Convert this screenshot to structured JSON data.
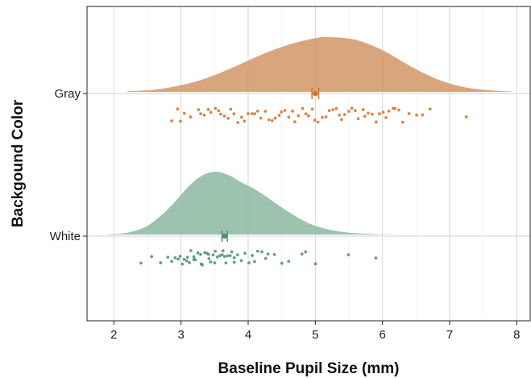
{
  "chart_data": {
    "type": "raincloud",
    "xlabel": "Baseline Pupil Size (mm)",
    "ylabel": "Backgound Color",
    "xlim": [
      1.6,
      8.2
    ],
    "x_ticks": [
      2,
      3,
      4,
      5,
      6,
      7,
      8
    ],
    "x_tick_labels": [
      "2",
      "3",
      "4",
      "5",
      "6",
      "7",
      "8"
    ],
    "grid": true,
    "legend": "none",
    "series": [
      {
        "name": "Gray",
        "color": "#d4996b",
        "point_color": "#c8753a",
        "mean": 5.0,
        "ci": [
          4.95,
          5.05
        ],
        "density": {
          "x": [
            2.2,
            2.6,
            3.0,
            3.4,
            3.8,
            4.2,
            4.6,
            5.0,
            5.2,
            5.6,
            6.0,
            6.4,
            6.8,
            7.2,
            7.6,
            7.95
          ],
          "y": [
            0.01,
            0.04,
            0.12,
            0.26,
            0.46,
            0.68,
            0.86,
            0.98,
            1.0,
            0.95,
            0.76,
            0.48,
            0.24,
            0.09,
            0.03,
            0.005
          ]
        },
        "points_x": [
          2.85,
          2.95,
          3.0,
          3.05,
          3.15,
          3.25,
          3.3,
          3.35,
          3.4,
          3.45,
          3.5,
          3.55,
          3.6,
          3.65,
          3.7,
          3.75,
          3.8,
          3.85,
          3.9,
          3.95,
          4.0,
          4.05,
          4.1,
          4.15,
          4.2,
          4.25,
          4.3,
          4.35,
          4.4,
          4.45,
          4.5,
          4.55,
          4.6,
          4.65,
          4.7,
          4.75,
          4.8,
          4.85,
          4.9,
          4.95,
          5.0,
          5.05,
          5.1,
          5.15,
          5.2,
          5.25,
          5.3,
          5.35,
          5.4,
          5.45,
          5.5,
          5.55,
          5.6,
          5.65,
          5.7,
          5.75,
          5.8,
          5.85,
          5.9,
          5.95,
          6.0,
          6.05,
          6.1,
          6.15,
          6.2,
          6.25,
          6.3,
          6.4,
          6.5,
          6.6,
          6.7,
          7.25
        ]
      },
      {
        "name": "White",
        "color": "#8fbba4",
        "point_color": "#4f8f6e",
        "mean": 3.65,
        "ci": [
          3.61,
          3.69
        ],
        "density": {
          "x": [
            1.9,
            2.2,
            2.5,
            2.8,
            3.1,
            3.3,
            3.5,
            3.7,
            3.9,
            4.1,
            4.3,
            4.6,
            4.9,
            5.2,
            5.5,
            5.8,
            6.1,
            6.35
          ],
          "y": [
            0.005,
            0.03,
            0.14,
            0.4,
            0.75,
            0.93,
            1.0,
            0.95,
            0.83,
            0.72,
            0.58,
            0.36,
            0.18,
            0.08,
            0.03,
            0.012,
            0.004,
            0.0
          ]
        },
        "points_x": [
          2.4,
          2.55,
          2.7,
          2.8,
          2.85,
          2.9,
          2.95,
          3.0,
          3.02,
          3.05,
          3.08,
          3.1,
          3.12,
          3.15,
          3.18,
          3.2,
          3.22,
          3.25,
          3.28,
          3.3,
          3.32,
          3.35,
          3.38,
          3.4,
          3.42,
          3.45,
          3.48,
          3.5,
          3.52,
          3.55,
          3.58,
          3.6,
          3.62,
          3.65,
          3.68,
          3.7,
          3.72,
          3.75,
          3.78,
          3.8,
          3.85,
          3.9,
          3.95,
          4.0,
          4.05,
          4.1,
          4.15,
          4.2,
          4.25,
          4.3,
          4.4,
          4.5,
          4.6,
          4.8,
          4.85,
          5.0,
          5.5,
          5.9
        ]
      }
    ]
  }
}
